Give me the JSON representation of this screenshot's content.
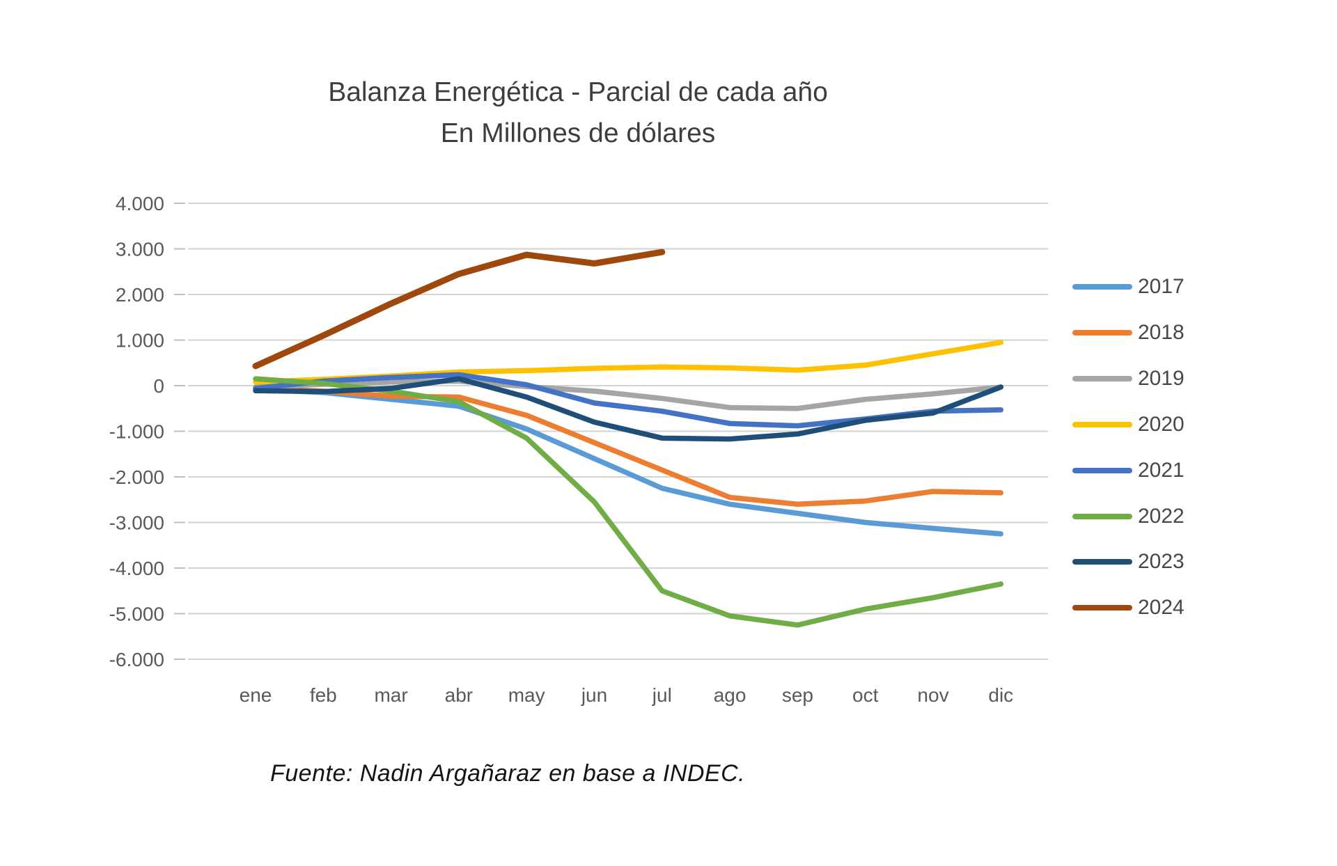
{
  "page": {
    "background": "#ffffff"
  },
  "chart": {
    "title_line1": "Balanza Energética - Parcial de cada año",
    "title_line2": "En Millones de dólares",
    "source_note": "Fuente: Nadin Argañaraz en base a INDEC.",
    "axis_label_color": "#595959",
    "gridline_color": "#d2d2d2",
    "tick_color": "#bfbfbf"
  },
  "chart_data": {
    "type": "line",
    "title": "Balanza Energética - Parcial de cada año",
    "subtitle": "En Millones de dólares",
    "xlabel": "",
    "ylabel": "",
    "ylim": [
      -6000,
      4000
    ],
    "grid": true,
    "legend_position": "right",
    "categories": [
      "ene",
      "feb",
      "mar",
      "abr",
      "may",
      "jun",
      "jul",
      "ago",
      "sep",
      "oct",
      "nov",
      "dic"
    ],
    "y_ticks": [
      4000,
      3000,
      2000,
      1000,
      0,
      -1000,
      -2000,
      -3000,
      -4000,
      -5000,
      -6000
    ],
    "y_tick_labels": [
      "4.000",
      "3.000",
      "2.000",
      "1.000",
      "0",
      "-1.000",
      "-2.000",
      "-3.000",
      "-4.000",
      "-5.000",
      "-6.000"
    ],
    "series": [
      {
        "name": "2017",
        "color": "#5B9BD5",
        "values": [
          -80,
          -150,
          -300,
          -450,
          -950,
          -1600,
          -2250,
          -2600,
          -2800,
          -3000,
          -3130,
          -3250
        ]
      },
      {
        "name": "2018",
        "color": "#ED7D31",
        "values": [
          -60,
          -120,
          -230,
          -250,
          -650,
          -1250,
          -1850,
          -2450,
          -2600,
          -2530,
          -2320,
          -2350
        ]
      },
      {
        "name": "2019",
        "color": "#A5A5A5",
        "values": [
          -30,
          30,
          80,
          100,
          -20,
          -120,
          -280,
          -480,
          -500,
          -300,
          -180,
          -30
        ]
      },
      {
        "name": "2020",
        "color": "#FFC000",
        "values": [
          80,
          140,
          210,
          300,
          330,
          380,
          410,
          390,
          340,
          450,
          700,
          950
        ]
      },
      {
        "name": "2021",
        "color": "#4472C4",
        "values": [
          -60,
          100,
          180,
          240,
          20,
          -380,
          -560,
          -830,
          -880,
          -730,
          -560,
          -530
        ]
      },
      {
        "name": "2022",
        "color": "#70AD47",
        "values": [
          150,
          50,
          -120,
          -350,
          -1150,
          -2550,
          -4500,
          -5050,
          -5250,
          -4900,
          -4650,
          -4350
        ]
      },
      {
        "name": "2023",
        "color": "#1F4E79",
        "values": [
          -110,
          -130,
          -60,
          150,
          -250,
          -800,
          -1150,
          -1170,
          -1060,
          -760,
          -600,
          -30
        ]
      },
      {
        "name": "2024",
        "color": "#9E480E",
        "values": [
          430,
          1100,
          1800,
          2450,
          2870,
          2680,
          2930,
          null,
          null,
          null,
          null,
          null
        ]
      }
    ]
  }
}
